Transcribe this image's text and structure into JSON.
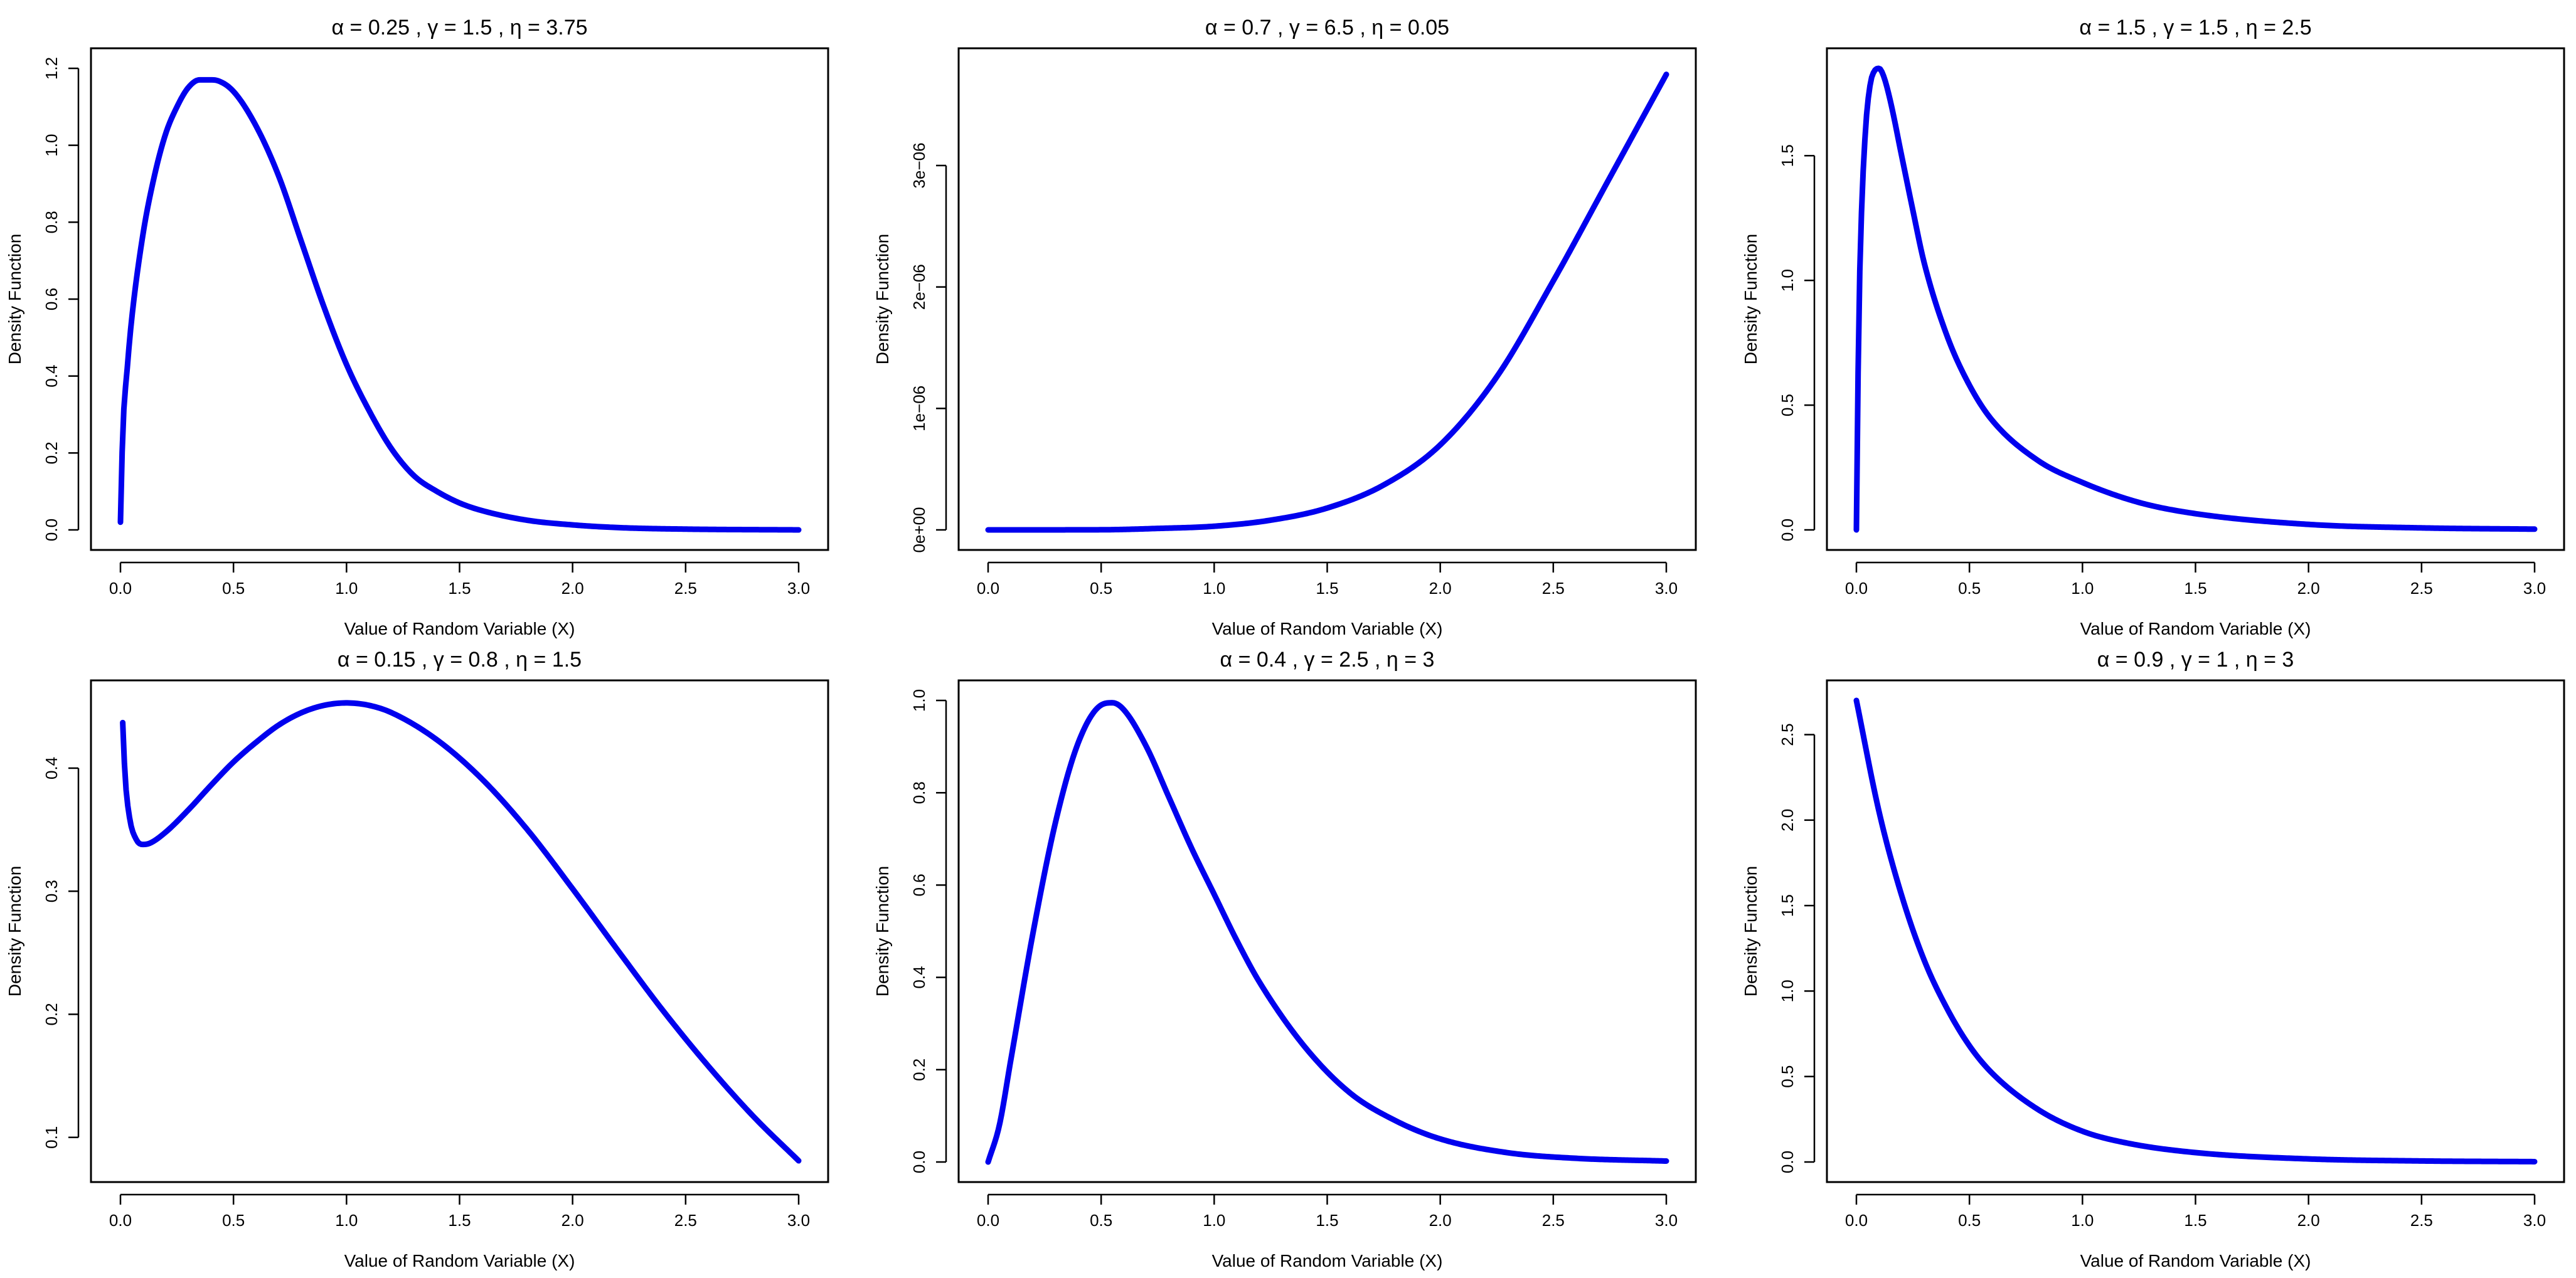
{
  "figure": {
    "curve_color": "#0000EE",
    "layout": "2 rows x 3 columns"
  },
  "chart_data": [
    {
      "type": "line",
      "title": "α = 0.25 ,  γ = 1.5 ,  η = 3.75",
      "xlabel": "Value of Random Variable (X)",
      "ylabel": "Density Function",
      "xlim": [
        0,
        3
      ],
      "ylim": [
        0,
        1.2
      ],
      "xticks": [
        0,
        0.5,
        1,
        1.5,
        2,
        2.5,
        3
      ],
      "xtick_labels": [
        "0.0",
        "0.5",
        "1.0",
        "1.5",
        "2.0",
        "2.5",
        "3.0"
      ],
      "yticks": [
        0,
        0.2,
        0.4,
        0.6,
        0.8,
        1.0,
        1.2
      ],
      "ytick_labels": [
        "0.0",
        "0.2",
        "0.4",
        "0.6",
        "0.8",
        "1.0",
        "1.2"
      ],
      "series": [
        {
          "x": [
            0,
            0.01,
            0.03,
            0.05,
            0.1,
            0.15,
            0.2,
            0.25,
            0.3,
            0.35,
            0.4,
            0.43,
            0.5,
            0.6,
            0.7,
            0.8,
            0.9,
            1.0,
            1.1,
            1.2,
            1.3,
            1.4,
            1.5,
            1.6,
            1.8,
            2.0,
            2.2,
            2.5,
            3.0
          ],
          "y": [
            0.02,
            0.25,
            0.42,
            0.55,
            0.77,
            0.92,
            1.03,
            1.1,
            1.15,
            1.17,
            1.17,
            1.168,
            1.14,
            1.05,
            0.92,
            0.75,
            0.58,
            0.43,
            0.31,
            0.21,
            0.14,
            0.1,
            0.07,
            0.05,
            0.025,
            0.013,
            0.006,
            0.002,
            0.0
          ]
        }
      ]
    },
    {
      "type": "line",
      "title": "α = 0.7 ,  γ = 6.5 ,  η = 0.05",
      "xlabel": "Value of Random Variable (X)",
      "ylabel": "Density Function",
      "xlim": [
        0,
        3
      ],
      "ylim": [
        0,
        3.8e-06
      ],
      "xticks": [
        0,
        0.5,
        1,
        1.5,
        2,
        2.5,
        3
      ],
      "xtick_labels": [
        "0.0",
        "0.5",
        "1.0",
        "1.5",
        "2.0",
        "2.5",
        "3.0"
      ],
      "yticks": [
        0,
        1e-06,
        2e-06,
        3e-06
      ],
      "ytick_labels": [
        "0e+00",
        "1e−06",
        "2e−06",
        "3e−06"
      ],
      "series": [
        {
          "x": [
            0,
            0.5,
            0.75,
            1.0,
            1.25,
            1.5,
            1.75,
            2.0,
            2.25,
            2.5,
            2.75,
            3.0
          ],
          "y": [
            0,
            1e-09,
            1.2e-08,
            3e-08,
            8e-08,
            1.8e-07,
            3.7e-07,
            7e-07,
            1.26e-06,
            2.05e-06,
            2.9e-06,
            3.75e-06
          ]
        }
      ]
    },
    {
      "type": "line",
      "title": "α = 1.5 ,  γ = 1.5 ,  η = 2.5",
      "xlabel": "Value of Random Variable (X)",
      "ylabel": "Density Function",
      "xlim": [
        0,
        3
      ],
      "ylim": [
        0,
        1.85
      ],
      "xticks": [
        0,
        0.5,
        1,
        1.5,
        2,
        2.5,
        3
      ],
      "xtick_labels": [
        "0.0",
        "0.5",
        "1.0",
        "1.5",
        "2.0",
        "2.5",
        "3.0"
      ],
      "yticks": [
        0,
        0.5,
        1.0,
        1.5
      ],
      "ytick_labels": [
        "0.0",
        "0.5",
        "1.0",
        "1.5"
      ],
      "series": [
        {
          "x": [
            0,
            0.01,
            0.02,
            0.04,
            0.06,
            0.08,
            0.1,
            0.12,
            0.15,
            0.2,
            0.25,
            0.3,
            0.4,
            0.5,
            0.6,
            0.8,
            1.0,
            1.25,
            1.5,
            2.0,
            2.5,
            3.0
          ],
          "y": [
            0,
            0.8,
            1.2,
            1.6,
            1.78,
            1.84,
            1.85,
            1.82,
            1.72,
            1.5,
            1.28,
            1.07,
            0.78,
            0.58,
            0.44,
            0.28,
            0.19,
            0.11,
            0.065,
            0.022,
            0.008,
            0.003
          ]
        }
      ]
    },
    {
      "type": "line",
      "title": "α = 0.15 ,  γ = 0.8 ,  η = 1.5",
      "xlabel": "Value of Random Variable (X)",
      "ylabel": "Density Function",
      "xlim": [
        0,
        3
      ],
      "ylim": [
        0.08,
        0.455
      ],
      "xticks": [
        0,
        0.5,
        1,
        1.5,
        2,
        2.5,
        3
      ],
      "xtick_labels": [
        "0.0",
        "0.5",
        "1.0",
        "1.5",
        "2.0",
        "2.5",
        "3.0"
      ],
      "yticks": [
        0.1,
        0.2,
        0.3,
        0.4
      ],
      "ytick_labels": [
        "0.1",
        "0.2",
        "0.3",
        "0.4"
      ],
      "series": [
        {
          "x": [
            0.01,
            0.02,
            0.04,
            0.07,
            0.1,
            0.13,
            0.2,
            0.3,
            0.4,
            0.5,
            0.6,
            0.7,
            0.8,
            0.9,
            1.0,
            1.1,
            1.2,
            1.4,
            1.6,
            1.8,
            2.0,
            2.2,
            2.4,
            2.6,
            2.8,
            3.0
          ],
          "y": [
            0.437,
            0.395,
            0.36,
            0.342,
            0.338,
            0.339,
            0.348,
            0.366,
            0.386,
            0.405,
            0.421,
            0.435,
            0.445,
            0.451,
            0.453,
            0.451,
            0.445,
            0.423,
            0.391,
            0.35,
            0.302,
            0.252,
            0.203,
            0.158,
            0.117,
            0.081
          ]
        }
      ]
    },
    {
      "type": "line",
      "title": "α = 0.4 ,  γ = 2.5 ,  η = 3",
      "xlabel": "Value of Random Variable (X)",
      "ylabel": "Density Function",
      "xlim": [
        0,
        3
      ],
      "ylim": [
        0,
        1.0
      ],
      "xticks": [
        0,
        0.5,
        1,
        1.5,
        2,
        2.5,
        3
      ],
      "xtick_labels": [
        "0.0",
        "0.5",
        "1.0",
        "1.5",
        "2.0",
        "2.5",
        "3.0"
      ],
      "yticks": [
        0,
        0.2,
        0.4,
        0.6,
        0.8,
        1.0
      ],
      "ytick_labels": [
        "0.0",
        "0.2",
        "0.4",
        "0.6",
        "0.8",
        "1.0"
      ],
      "series": [
        {
          "x": [
            0,
            0.05,
            0.1,
            0.2,
            0.3,
            0.4,
            0.5,
            0.55,
            0.6,
            0.7,
            0.8,
            0.9,
            1.0,
            1.1,
            1.2,
            1.4,
            1.6,
            1.8,
            2.0,
            2.3,
            2.6,
            3.0
          ],
          "y": [
            0,
            0.08,
            0.22,
            0.5,
            0.74,
            0.91,
            0.99,
            0.995,
            0.98,
            0.9,
            0.79,
            0.68,
            0.58,
            0.48,
            0.39,
            0.25,
            0.15,
            0.09,
            0.05,
            0.02,
            0.008,
            0.002
          ]
        }
      ]
    },
    {
      "type": "line",
      "title": "α = 0.9 ,  γ = 1 ,  η = 3",
      "xlabel": "Value of Random Variable (X)",
      "ylabel": "Density Function",
      "xlim": [
        0,
        3
      ],
      "ylim": [
        0,
        2.7
      ],
      "xticks": [
        0,
        0.5,
        1,
        1.5,
        2,
        2.5,
        3
      ],
      "xtick_labels": [
        "0.0",
        "0.5",
        "1.0",
        "1.5",
        "2.0",
        "2.5",
        "3.0"
      ],
      "yticks": [
        0,
        0.5,
        1.0,
        1.5,
        2.0,
        2.5
      ],
      "ytick_labels": [
        "0.0",
        "0.5",
        "1.0",
        "1.5",
        "2.0",
        "2.5"
      ],
      "series": [
        {
          "x": [
            0,
            0.1,
            0.2,
            0.3,
            0.4,
            0.5,
            0.6,
            0.8,
            1.0,
            1.2,
            1.5,
            2.0,
            2.5,
            3.0
          ],
          "y": [
            2.7,
            2.05,
            1.56,
            1.18,
            0.9,
            0.68,
            0.52,
            0.31,
            0.18,
            0.11,
            0.055,
            0.018,
            0.006,
            0.002
          ]
        }
      ]
    }
  ]
}
